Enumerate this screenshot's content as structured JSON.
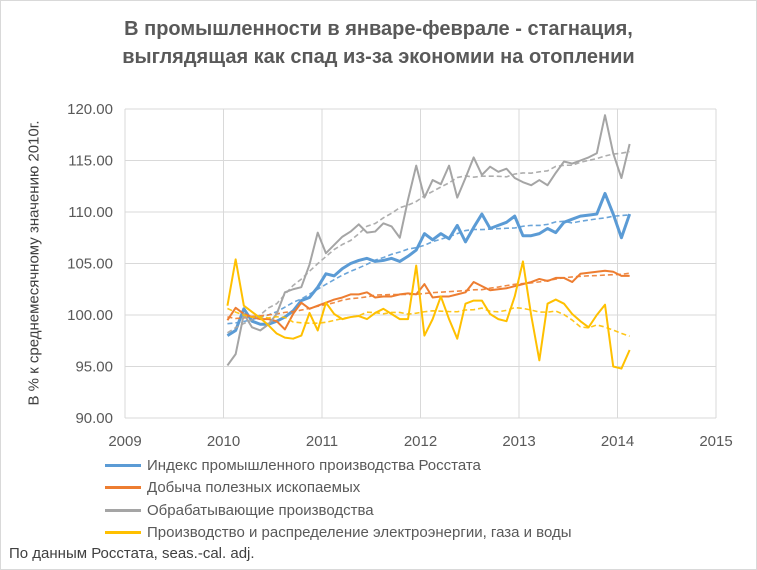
{
  "chart_data": {
    "type": "line",
    "title": "В промышленности в январе-феврале - стагнация, выглядящая как спад из-за экономии на отоплении",
    "title_lines": [
      "В промышленности в январе-феврале - стагнация,",
      "выглядящая как спад из-за экономии на отоплении"
    ],
    "ylabel": "В % к среднемесячному значению 2010г.",
    "xlabel": "",
    "xlim": [
      2009,
      2015
    ],
    "ylim": [
      90,
      120
    ],
    "x_ticks": [
      "2009",
      "2010",
      "2011",
      "2012",
      "2013",
      "2014",
      "2015"
    ],
    "y_ticks": [
      "90.00",
      "95.00",
      "100.00",
      "105.00",
      "110.00",
      "115.00",
      "120.00"
    ],
    "grid": true,
    "legend_position": "bottom",
    "x_start_year": 2010.04,
    "x_step_years": 0.08333,
    "trend": "moving-average dashed line per series",
    "series": [
      {
        "name": "Индекс промышленного производства Росстата",
        "color": "#5b9bd5",
        "width": 3,
        "values": [
          98.0,
          98.5,
          100.6,
          99.4,
          99.1,
          99.1,
          99.4,
          99.8,
          100.4,
          101.4,
          101.7,
          102.7,
          104.0,
          103.8,
          104.5,
          105.0,
          105.3,
          105.5,
          105.2,
          105.3,
          105.5,
          105.2,
          105.7,
          106.3,
          107.9,
          107.3,
          107.9,
          107.4,
          108.7,
          107.1,
          108.5,
          109.8,
          108.4,
          108.7,
          109.0,
          109.6,
          107.7,
          107.7,
          107.9,
          108.4,
          108.0,
          109.0,
          109.3,
          109.6,
          109.7,
          109.8,
          111.8,
          109.8,
          107.5,
          109.8
        ]
      },
      {
        "name": "Добыча полезных ископаемых",
        "color": "#ed7d31",
        "width": 2,
        "values": [
          99.5,
          100.7,
          100.1,
          99.8,
          99.6,
          99.6,
          99.4,
          98.6,
          100.1,
          101.2,
          100.6,
          100.9,
          101.2,
          101.5,
          101.7,
          102.0,
          102.0,
          102.2,
          101.7,
          101.8,
          101.8,
          102.0,
          102.1,
          102.0,
          103.0,
          101.7,
          101.8,
          101.8,
          102.0,
          102.2,
          103.2,
          102.8,
          102.4,
          102.5,
          102.6,
          102.8,
          103.0,
          103.2,
          103.5,
          103.3,
          103.6,
          103.6,
          103.2,
          104.0,
          104.1,
          104.2,
          104.3,
          104.2,
          103.8,
          103.8
        ]
      },
      {
        "name": "Обрабатывающие производства",
        "color": "#a5a5a5",
        "width": 2,
        "values": [
          95.1,
          96.2,
          100.1,
          98.8,
          98.5,
          99.1,
          100.1,
          102.2,
          102.5,
          102.7,
          104.9,
          108.0,
          106.0,
          106.8,
          107.6,
          108.1,
          108.8,
          108.0,
          108.1,
          108.9,
          108.6,
          107.5,
          111.2,
          114.5,
          111.4,
          113.1,
          112.7,
          114.5,
          111.4,
          113.3,
          115.3,
          113.6,
          114.4,
          113.9,
          114.2,
          113.3,
          112.9,
          112.6,
          113.1,
          112.6,
          113.8,
          114.9,
          114.7,
          115.0,
          115.3,
          115.7,
          119.4,
          115.7,
          113.3,
          116.6
        ]
      },
      {
        "name": "Производство и распределение электроэнергии, газа и воды",
        "color": "#ffc000",
        "width": 2,
        "values": [
          100.9,
          105.4,
          100.9,
          100.3,
          99.7,
          99.0,
          98.2,
          97.8,
          97.7,
          98.0,
          100.2,
          98.5,
          101.2,
          100.1,
          99.6,
          99.8,
          99.9,
          99.6,
          100.2,
          100.6,
          100.1,
          99.6,
          99.6,
          104.8,
          98.0,
          99.6,
          101.8,
          99.6,
          97.7,
          101.1,
          101.4,
          101.4,
          100.1,
          99.6,
          99.4,
          101.8,
          105.2,
          100.0,
          95.6,
          101.1,
          101.5,
          101.1,
          100.1,
          99.4,
          98.8,
          100.0,
          101.0,
          95.0,
          94.8,
          96.6
        ]
      }
    ],
    "source_note": "По данным Росстата, seas.-cal. adj."
  }
}
